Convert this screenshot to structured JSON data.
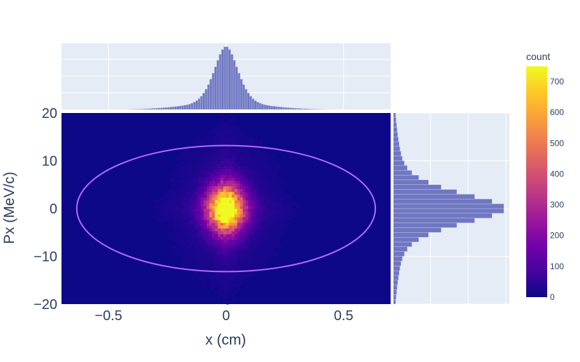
{
  "chart_data": {
    "type": "heatmap",
    "title": "",
    "xlabel": "x (cm)",
    "ylabel": "Px (MeV/c)",
    "xlim": [
      -0.7,
      0.7
    ],
    "ylim": [
      -20,
      20
    ],
    "x_ticks": [
      {
        "value": -0.5,
        "label": "−0.5"
      },
      {
        "value": 0,
        "label": "0"
      },
      {
        "value": 0.5,
        "label": "0.5"
      }
    ],
    "y_ticks": [
      {
        "value": 20,
        "label": "20"
      },
      {
        "value": 10,
        "label": "10"
      },
      {
        "value": 0,
        "label": "0"
      },
      {
        "value": -10,
        "label": "−10"
      },
      {
        "value": -20,
        "label": "−20"
      }
    ],
    "heatmap": {
      "peak_count": 750,
      "center_x": 0,
      "center_y": 0,
      "sigma_x_cm": 0.055,
      "sigma_y_mevc": 3.5,
      "background_color": "#0d0887"
    },
    "ellipse": {
      "center_x": 0,
      "center_y": 0,
      "semi_axis_x": 0.635,
      "semi_axis_y": 13.2,
      "color": "#b36aff"
    },
    "top_histogram": {
      "orientation": "vertical",
      "bin_width_cm": 0.01,
      "color": "#7077c2",
      "background": "#e5ecf6"
    },
    "right_histogram": {
      "orientation": "horizontal",
      "bin_width_mevc": 1,
      "color": "#7077c2",
      "background": "#e5ecf6"
    },
    "colorbar": {
      "title": "count",
      "range": [
        0,
        750
      ],
      "ticks": [
        {
          "value": 0,
          "label": "0"
        },
        {
          "value": 100,
          "label": "100"
        },
        {
          "value": 200,
          "label": "200"
        },
        {
          "value": 300,
          "label": "300"
        },
        {
          "value": 400,
          "label": "400"
        },
        {
          "value": 500,
          "label": "500"
        },
        {
          "value": 600,
          "label": "600"
        },
        {
          "value": 700,
          "label": "700"
        }
      ],
      "colorscale": [
        "#0d0887",
        "#46039f",
        "#7201a8",
        "#9c179e",
        "#bd3786",
        "#d8576b",
        "#ed7953",
        "#fb9f3a",
        "#fdca26",
        "#f0f921"
      ]
    }
  }
}
